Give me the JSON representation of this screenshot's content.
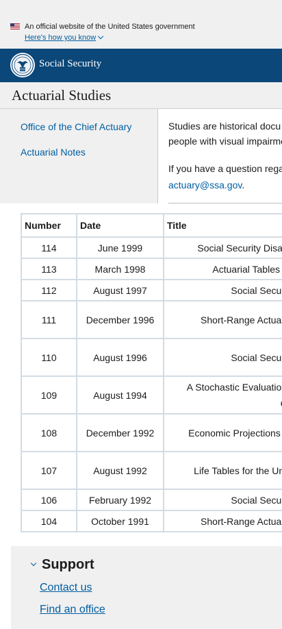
{
  "gov_banner": {
    "text": "An official website of the United States government",
    "link": "Here's how you know"
  },
  "header": {
    "brand": "Social Security"
  },
  "page": {
    "title": "Actuarial Studies"
  },
  "sidenav": {
    "items": [
      {
        "label": "Office of the Chief Actuary"
      },
      {
        "label": "Actuarial Notes"
      }
    ]
  },
  "intro": {
    "line1": "Studies are historical docu",
    "line2": "people with visual impairme",
    "line3": "If you have a question rega",
    "email": "actuary@ssa.gov",
    "email_suffix": "."
  },
  "table": {
    "headers": [
      "Number",
      "Date",
      "Title"
    ],
    "rows": [
      {
        "number": "114",
        "date": "June 1999",
        "title": "Social Security Disabili"
      },
      {
        "number": "113",
        "date": "March 1998",
        "title": "Actuarial Tables Ba"
      },
      {
        "number": "112",
        "date": "August 1997",
        "title": "Social Security"
      },
      {
        "number": "111",
        "date": "December 1996",
        "title": "Short-Range Actuarial"
      },
      {
        "number": "110",
        "date": "August 1996",
        "title": "Social Security"
      },
      {
        "number": "109",
        "date": "August 1994",
        "title": "A Stochastic Evaluation c",
        "title2": "OA"
      },
      {
        "number": "108",
        "date": "December 1992",
        "title": "Economic Projections for"
      },
      {
        "number": "107",
        "date": "August 1992",
        "title": "Life Tables for the Unite"
      },
      {
        "number": "106",
        "date": "February 1992",
        "title": "Social Security"
      },
      {
        "number": "104",
        "date": "October 1991",
        "title": "Short-Range Actuarial"
      }
    ]
  },
  "support": {
    "title": "Support",
    "links": [
      {
        "label": "Contact us"
      },
      {
        "label": "Find an office"
      }
    ]
  },
  "colors": {
    "header_bg": "#0b4778",
    "link": "#005ea2",
    "banner_bg": "#f0f0f0",
    "table_border": "#d3dbe3"
  },
  "icons": [
    "us-flag-icon",
    "chevron-down-icon",
    "ssa-seal-icon"
  ]
}
